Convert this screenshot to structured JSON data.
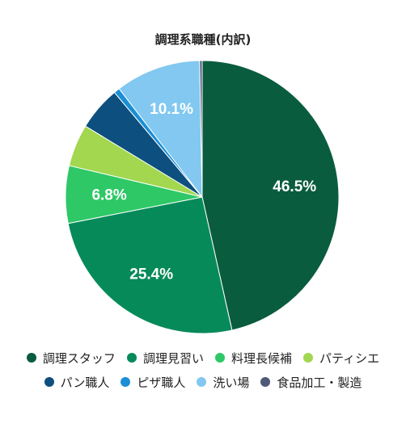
{
  "chart_data": {
    "type": "pie",
    "title": "調理系職種(内訳)",
    "categories": [
      "調理スタッフ",
      "調理見習い",
      "料理長候補",
      "パティシエ",
      "パン職人",
      "ピザ職人",
      "洗い場",
      "食品加工・製造"
    ],
    "values": [
      46.5,
      25.4,
      6.8,
      5.0,
      5.2,
      0.7,
      10.1,
      0.3
    ],
    "data_labels": [
      "46.5%",
      "25.4%",
      "6.8%",
      "",
      "",
      "",
      "10.1%",
      ""
    ],
    "colors": [
      "#0a5c3f",
      "#078a5a",
      "#2ec866",
      "#a2d74f",
      "#0d4f7e",
      "#1a8fd6",
      "#82c8f0",
      "#4f5a78"
    ],
    "legend_position": "bottom"
  }
}
